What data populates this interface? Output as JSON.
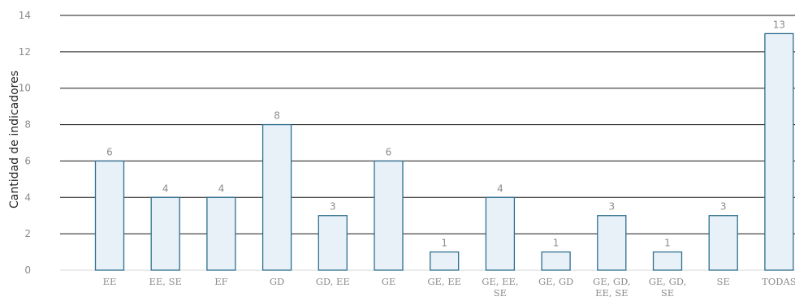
{
  "chart_data": {
    "type": "bar",
    "ylabel": "Cantidad de indicadores",
    "xlabel": "",
    "ylim": [
      0,
      14
    ],
    "yticks": [
      0,
      2,
      4,
      6,
      8,
      10,
      12,
      14
    ],
    "grid": true,
    "categories": [
      [
        "EE"
      ],
      [
        "EE, SE"
      ],
      [
        "EF"
      ],
      [
        "GD"
      ],
      [
        "GD, EE"
      ],
      [
        "GE"
      ],
      [
        "GE, EE"
      ],
      [
        "GE, EE,",
        "SE"
      ],
      [
        "GE, GD"
      ],
      [
        "GE, GD,",
        "EE, SE"
      ],
      [
        "GE, GD,",
        "SE"
      ],
      [
        "SE"
      ],
      [
        "TODAS"
      ]
    ],
    "values": [
      6,
      4,
      4,
      8,
      3,
      6,
      1,
      4,
      1,
      3,
      1,
      3,
      13
    ],
    "colors": {
      "bar_fill": "#e8f0f8",
      "bar_stroke": "#2f6f8f",
      "grid": "#1a1a1a",
      "baseline": "#d9d9d9",
      "text": "#8c8c8c"
    }
  }
}
